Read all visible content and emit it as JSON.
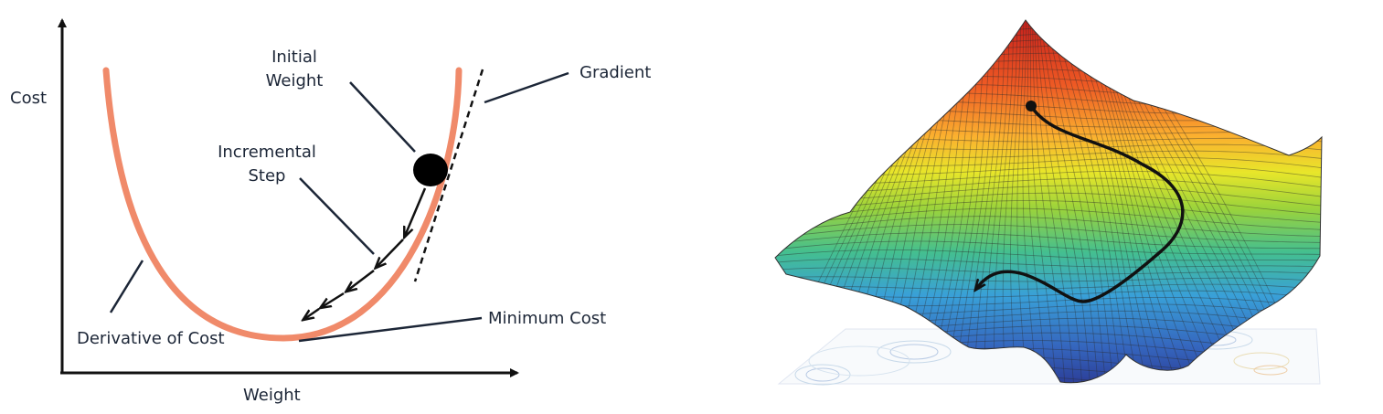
{
  "left_diagram": {
    "labels": {
      "y_axis": "Cost",
      "x_axis": "Weight",
      "initial_weight_line1": "Initial",
      "initial_weight_line2": "Weight",
      "incremental_step_line1": "Incremental",
      "incremental_step_line2": "Step",
      "gradient": "Gradient",
      "minimum_cost": "Minimum Cost",
      "derivative_of_cost": "Derivative of Cost"
    },
    "colors": {
      "curve": "#f08a6a",
      "axes": "#111111",
      "leader_lines": "#1c2637",
      "ball": "#000000"
    }
  },
  "right_image": {
    "description_color_scale": [
      "#d7261e",
      "#f46d25",
      "#fdb731",
      "#e6e625",
      "#8fd13a",
      "#3fb8a3",
      "#3a8fd6",
      "#2f4ba8"
    ],
    "path_color": "#111111"
  }
}
